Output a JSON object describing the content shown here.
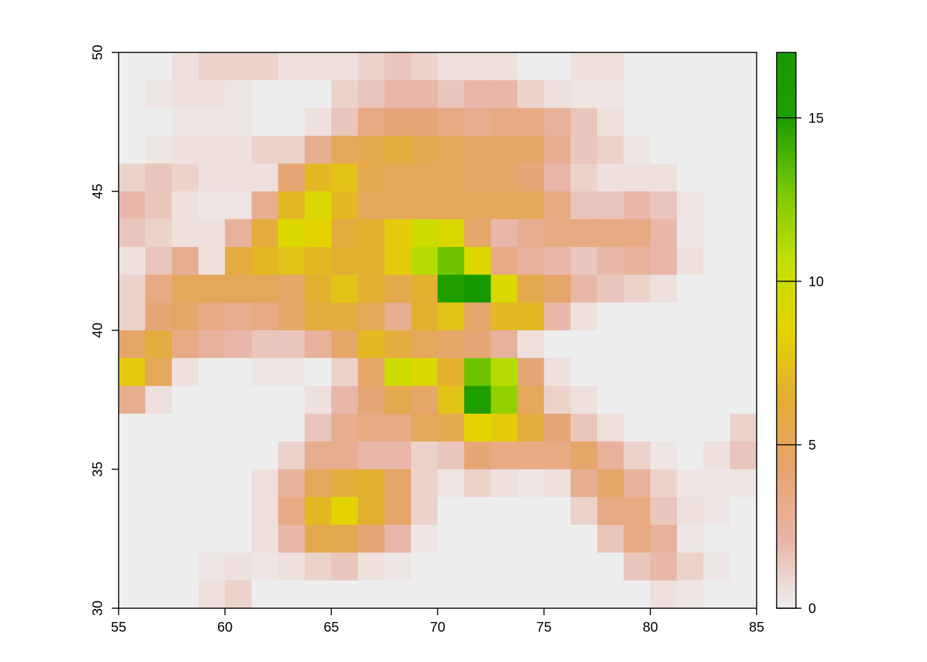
{
  "chart_data": {
    "type": "heatmap",
    "title": "",
    "xlabel": "",
    "ylabel": "",
    "xlim": [
      55,
      85
    ],
    "ylim": [
      30,
      50
    ],
    "cell_size_x": 1.25,
    "cell_size_y": 1.0,
    "x_ticks": [
      "55",
      "60",
      "65",
      "70",
      "75",
      "80",
      "85"
    ],
    "y_ticks": [
      "30",
      "35",
      "40",
      "45",
      "50"
    ],
    "legend": {
      "position": "right",
      "min": 0,
      "max": 17,
      "ticks": [
        "0",
        "5",
        "10",
        "15"
      ],
      "colors": [
        "#eeeeee",
        "#e8b4a6",
        "#e6a470",
        "#e3ad32",
        "#e3d400",
        "#c3df00",
        "#79c800",
        "#1f9e00",
        "#159a00"
      ]
    },
    "rows_top_to_bottom": [
      [
        0,
        0,
        0.5,
        1,
        1,
        1,
        0.5,
        0.5,
        0.5,
        1,
        1.5,
        1,
        0.5,
        0.5,
        0.5,
        0,
        0,
        0.5,
        0.5,
        0,
        0,
        0,
        0,
        0
      ],
      [
        0,
        0.3,
        0.5,
        0.5,
        0.3,
        0,
        0,
        0,
        1,
        1.5,
        2,
        2,
        1.5,
        2,
        2,
        1,
        0.5,
        0.3,
        0.3,
        0,
        0,
        0,
        0,
        0
      ],
      [
        0,
        0,
        0.3,
        0.3,
        0.3,
        0,
        0,
        0.5,
        1.5,
        3.5,
        4,
        4,
        3.5,
        3,
        3.5,
        3.5,
        2.5,
        1.5,
        0.5,
        0,
        0,
        0,
        0,
        0
      ],
      [
        0,
        0.3,
        0.5,
        0.5,
        0.5,
        1,
        1,
        3,
        5,
        5.5,
        6,
        5.5,
        5,
        4.5,
        4.5,
        4.5,
        3,
        1.5,
        1,
        0.3,
        0,
        0,
        0,
        0
      ],
      [
        1,
        1.5,
        1,
        0.5,
        0.5,
        0.5,
        4,
        7,
        7.5,
        5.5,
        5,
        5,
        5,
        4.5,
        4.5,
        4,
        2,
        1,
        0.5,
        0.5,
        0.5,
        0,
        0,
        0
      ],
      [
        2,
        1.5,
        0.5,
        0.3,
        0.3,
        3,
        7,
        9,
        7,
        5,
        5,
        5,
        5,
        5,
        5,
        5,
        3.5,
        1.5,
        1.5,
        2,
        1.5,
        0.3,
        0,
        0
      ],
      [
        1.5,
        1,
        0.5,
        0.5,
        2.5,
        6,
        9,
        8.5,
        6,
        6.5,
        8,
        10,
        9,
        4.5,
        2,
        3,
        3.5,
        3.5,
        3.5,
        3.5,
        2,
        0.3,
        0,
        0
      ],
      [
        0.5,
        1.5,
        3,
        0.5,
        6,
        7,
        7.5,
        7,
        6.5,
        6.5,
        8,
        11,
        13,
        9,
        3.5,
        2.5,
        2,
        1.5,
        2,
        2.5,
        2,
        0.5,
        0,
        0
      ],
      [
        1,
        3.5,
        5,
        5,
        5,
        5,
        4.5,
        6.5,
        7.5,
        6.5,
        5.5,
        6.5,
        15,
        17,
        9,
        5.5,
        4.5,
        2,
        1.5,
        1,
        0.5,
        0,
        0,
        0
      ],
      [
        1,
        4,
        4.5,
        3.5,
        3,
        3.5,
        4.5,
        6,
        6,
        5,
        3,
        6.5,
        7.5,
        4.5,
        7,
        7,
        2,
        0.5,
        0,
        0,
        0,
        0,
        0,
        0
      ],
      [
        4.5,
        6,
        3.5,
        2.5,
        2,
        1.5,
        1.5,
        2.5,
        4.5,
        7,
        6,
        5,
        4.5,
        4,
        2.5,
        0.5,
        0,
        0,
        0,
        0,
        0,
        0,
        0,
        0
      ],
      [
        8,
        5,
        0.5,
        0,
        0,
        0.3,
        0.3,
        0,
        1,
        4.5,
        10,
        9,
        6.5,
        13,
        11,
        4,
        0.5,
        0,
        0,
        0,
        0,
        0,
        0,
        0
      ],
      [
        3,
        0.5,
        0,
        0,
        0,
        0,
        0,
        0.5,
        2,
        4,
        5.5,
        4.5,
        7.5,
        15,
        12,
        5,
        1,
        0.5,
        0,
        0,
        0,
        0,
        0,
        0
      ],
      [
        0,
        0,
        0,
        0,
        0,
        0,
        0,
        1.5,
        3,
        3.5,
        3.5,
        5,
        5.5,
        8.5,
        8,
        6,
        4,
        1.5,
        0.5,
        0,
        0,
        0,
        0,
        1
      ],
      [
        0,
        0,
        0,
        0,
        0,
        0,
        1,
        3,
        3,
        2,
        2,
        1,
        1.5,
        4,
        3.5,
        3.5,
        3.5,
        4.5,
        2.5,
        1,
        0.3,
        0,
        0.5,
        1.5
      ],
      [
        0,
        0,
        0,
        0,
        0,
        0.5,
        2.5,
        5,
        6,
        6.5,
        4.5,
        1,
        0.3,
        1,
        0.5,
        0.3,
        0.5,
        3,
        4.5,
        2.5,
        1,
        0.3,
        0.3,
        0.3
      ],
      [
        0,
        0,
        0,
        0,
        0,
        0.5,
        3.5,
        7,
        8.5,
        6.5,
        4.5,
        1,
        0,
        0,
        0,
        0,
        0,
        1,
        3.5,
        3.5,
        1.5,
        0.5,
        0.3,
        0
      ],
      [
        0,
        0,
        0,
        0,
        0,
        0.5,
        2,
        5.5,
        5.5,
        4,
        2,
        0.3,
        0,
        0,
        0,
        0,
        0,
        0,
        1.5,
        3.5,
        2.5,
        0.3,
        0,
        0
      ],
      [
        0,
        0,
        0,
        0.3,
        0.5,
        0.3,
        0.5,
        1,
        1.5,
        0.5,
        0.3,
        0,
        0,
        0,
        0,
        0,
        0,
        0,
        0,
        1.5,
        2,
        1,
        0.3,
        0
      ],
      [
        0,
        0,
        0,
        0.5,
        1,
        0,
        0,
        0,
        0,
        0,
        0,
        0,
        0,
        0,
        0,
        0,
        0,
        0,
        0,
        0,
        0.5,
        0.3,
        0,
        0
      ]
    ]
  }
}
